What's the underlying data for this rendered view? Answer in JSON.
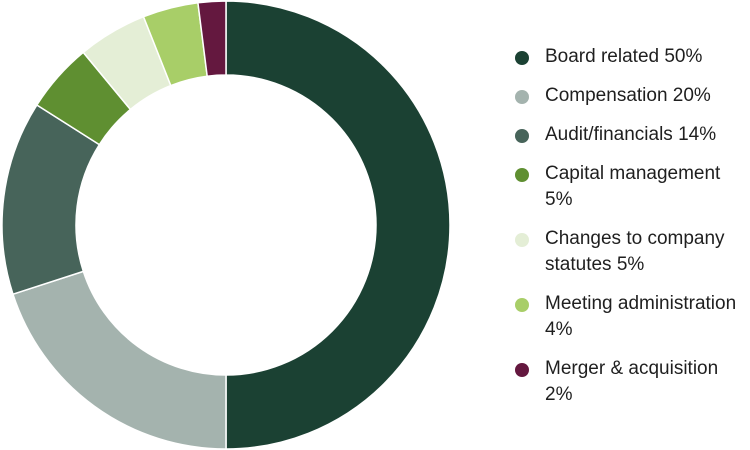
{
  "chart_data": {
    "type": "pie",
    "variant": "donut",
    "legend_position": "right",
    "slices": [
      {
        "label": "Board related 50%",
        "value": 50,
        "color": "#1b4133"
      },
      {
        "label": "Compensation 20%",
        "value": 20,
        "color": "#a4b3ae"
      },
      {
        "label": "Audit/financials 14%",
        "value": 14,
        "color": "#47645a"
      },
      {
        "label": "Capital management 5%",
        "value": 5,
        "color": "#5f8f31"
      },
      {
        "label": "Changes to company statutes 5%",
        "value": 5,
        "color": "#e4eed6"
      },
      {
        "label": "Meeting administration 4%",
        "value": 4,
        "color": "#a8ce68"
      },
      {
        "label": "Merger & acquisition 2%",
        "value": 2,
        "color": "#64183f"
      }
    ]
  }
}
